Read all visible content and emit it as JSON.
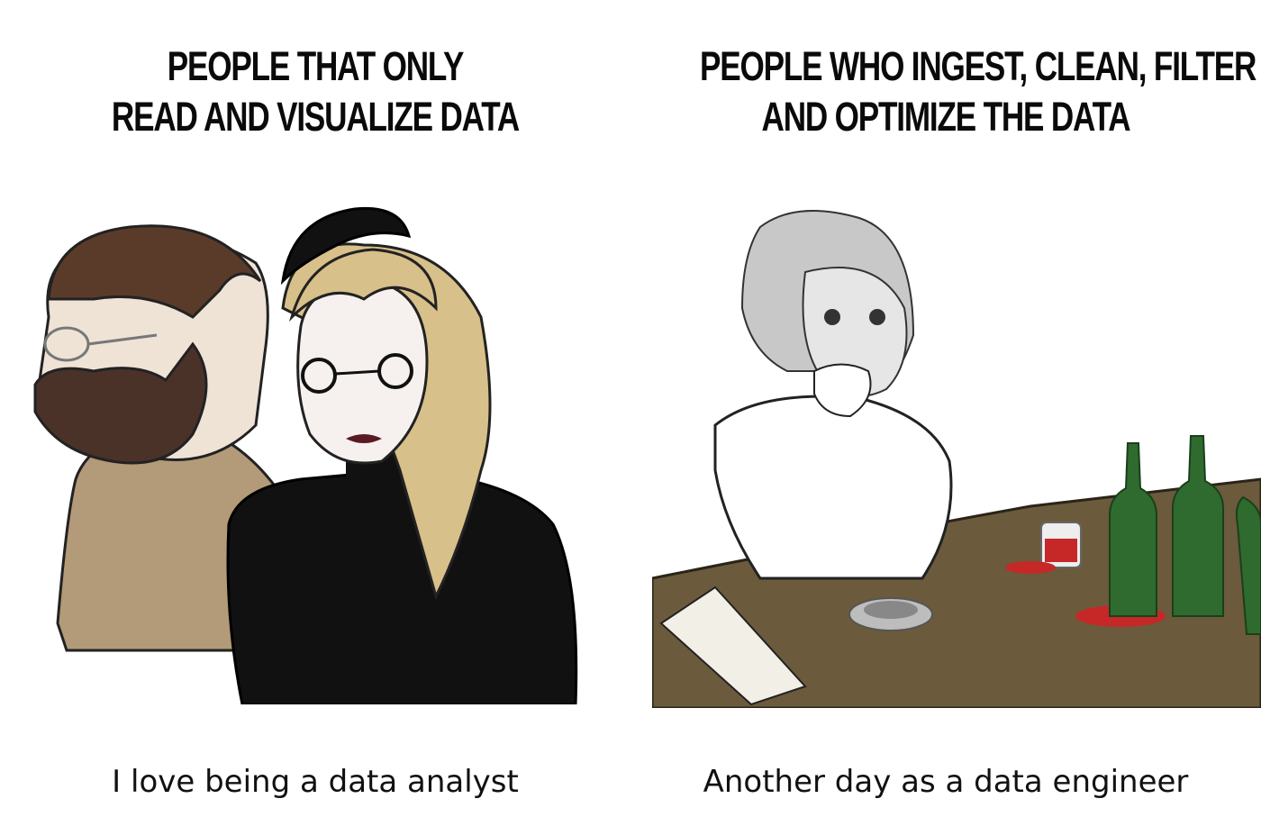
{
  "left": {
    "headline_line1": "PEOPLE THAT ONLY",
    "headline_line2": "READ AND VISUALIZE DATA",
    "caption": "I love being a data analyst"
  },
  "right": {
    "headline_line1": "PEOPLE WHO INGEST, CLEAN, FILTER",
    "headline_line2": "AND OPTIMIZE THE DATA",
    "caption": "Another day as a data engineer"
  },
  "colors": {
    "background": "#ffffff",
    "text": "#0a0a0a",
    "table": "#6b5a3c",
    "bottle": "#2f6b2f",
    "wine": "#c62828",
    "beard": "#4a3228",
    "coat": "#b39a78",
    "hair_blonde": "#d8c08a",
    "sweater": "#111111"
  },
  "icons": [
    "bearded-man-icon",
    "blonde-woman-icon",
    "old-man-icon",
    "wine-bottle-icon",
    "ashtray-icon",
    "book-icon",
    "glass-icon"
  ]
}
